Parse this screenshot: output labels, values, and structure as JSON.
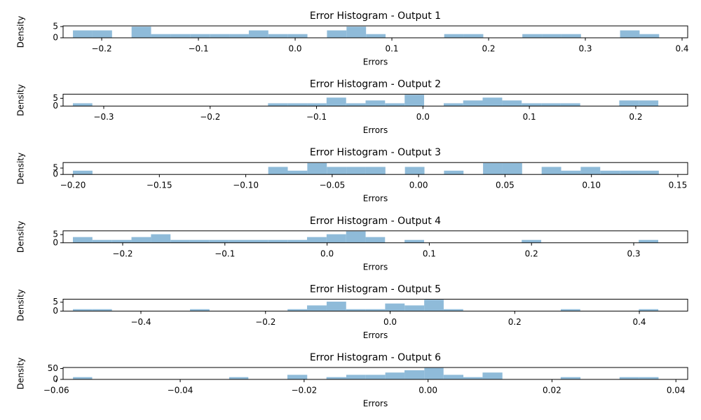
{
  "chart_data": [
    {
      "type": "histogram",
      "title": "Error Histogram - Output 1",
      "x_label": "Errors",
      "y_label": "Density",
      "color": "#8fbbd9",
      "bins": [
        -0.2297,
        -0.2095,
        -0.1893,
        -0.1691,
        -0.1489,
        -0.1287,
        -0.1085,
        -0.0883,
        -0.0681,
        -0.0479,
        -0.0277,
        -0.0075,
        0.0127,
        0.0329,
        0.0531,
        0.0733,
        0.0935,
        0.1137,
        0.1339,
        0.1541,
        0.1743,
        0.1945,
        0.2147,
        0.2349,
        0.2551,
        0.2753,
        0.2955,
        0.3157,
        0.3359,
        0.3561,
        0.3763
      ],
      "values": [
        3.3,
        3.3,
        0,
        4.95,
        1.65,
        1.65,
        1.65,
        1.65,
        1.65,
        3.3,
        1.65,
        1.65,
        0,
        3.3,
        4.95,
        1.65,
        0,
        0,
        0,
        1.65,
        1.65,
        0,
        0,
        1.65,
        1.65,
        1.65,
        0,
        0,
        3.3,
        1.65
      ],
      "xlim": [
        -0.2399,
        0.4058
      ],
      "xticks": [
        {
          "value": -0.2,
          "label": "−0.2"
        },
        {
          "value": -0.1,
          "label": "−0.1"
        },
        {
          "value": 0,
          "label": "0.0"
        },
        0.1,
        0.2,
        0.3,
        0.4
      ],
      "ylim": [
        0,
        5.3
      ],
      "yticks": [
        0,
        5
      ]
    },
    {
      "type": "histogram",
      "title": "Error Histogram - Output 2",
      "x_label": "Errors",
      "y_label": "Density",
      "color": "#8fbbd9",
      "bins": [
        -0.329,
        -0.3107,
        -0.2923,
        -0.274,
        -0.2556,
        -0.2373,
        -0.219,
        -0.2006,
        -0.1823,
        -0.1639,
        -0.1456,
        -0.1273,
        -0.1089,
        -0.0906,
        -0.0722,
        -0.0539,
        -0.0356,
        -0.0172,
        0.0011,
        0.0195,
        0.0378,
        0.0561,
        0.0745,
        0.0928,
        0.1112,
        0.1295,
        0.1478,
        0.1662,
        0.1845,
        0.2029,
        0.2212
      ],
      "values": [
        1.82,
        0,
        0,
        0,
        0,
        0,
        0,
        0,
        0,
        0,
        1.82,
        1.82,
        1.82,
        5.45,
        1.82,
        3.64,
        1.82,
        7.27,
        0,
        1.82,
        3.64,
        5.45,
        3.64,
        1.82,
        1.82,
        1.82,
        0,
        0,
        3.64,
        3.64
      ],
      "xlim": [
        -0.3382,
        0.2488
      ],
      "xticks": [
        {
          "value": -0.3,
          "label": "−0.3"
        },
        {
          "value": -0.2,
          "label": "−0.2"
        },
        {
          "value": -0.1,
          "label": "−0.1"
        },
        {
          "value": 0,
          "label": "0.0"
        },
        0.1,
        0.2
      ],
      "ylim": [
        0,
        7.6
      ],
      "yticks": [
        0,
        5
      ]
    },
    {
      "type": "histogram",
      "title": "Error Histogram - Output 3",
      "x_label": "Errors",
      "y_label": "Density",
      "color": "#8fbbd9",
      "bins": [
        -0.2,
        -0.1887,
        -0.1774,
        -0.1661,
        -0.1548,
        -0.1435,
        -0.1322,
        -0.1209,
        -0.1096,
        -0.0983,
        -0.087,
        -0.0757,
        -0.0644,
        -0.0531,
        -0.0418,
        -0.0305,
        -0.0192,
        -0.0079,
        0.0034,
        0.0147,
        0.026,
        0.0373,
        0.0486,
        0.0599,
        0.0712,
        0.0825,
        0.0938,
        0.1051,
        0.1164,
        0.1277,
        0.139
      ],
      "values": [
        2.95,
        0,
        0,
        0,
        0,
        0,
        0,
        0,
        0,
        0,
        5.9,
        2.95,
        8.85,
        5.9,
        5.9,
        5.9,
        0,
        5.9,
        0,
        2.95,
        0,
        8.85,
        8.85,
        0,
        5.9,
        2.95,
        5.9,
        2.95,
        2.95,
        2.95
      ],
      "xlim": [
        -0.2057,
        0.1557
      ],
      "xticks": [
        {
          "value": -0.2,
          "label": "−0.20"
        },
        {
          "value": -0.15,
          "label": "−0.15"
        },
        {
          "value": -0.1,
          "label": "−0.10"
        },
        {
          "value": -0.05,
          "label": "−0.05"
        },
        {
          "value": 0,
          "label": "0.00"
        },
        0.05,
        {
          "value": 0.1,
          "label": "0.10"
        },
        0.15
      ],
      "ylim": [
        0,
        9.3
      ],
      "yticks": [
        0,
        5
      ]
    },
    {
      "type": "histogram",
      "title": "Error Histogram - Output 4",
      "x_label": "Errors",
      "y_label": "Density",
      "color": "#8fbbd9",
      "bins": [
        -0.2487,
        -0.2296,
        -0.2105,
        -0.1914,
        -0.1723,
        -0.1532,
        -0.1342,
        -0.1151,
        -0.096,
        -0.0769,
        -0.0578,
        -0.0387,
        -0.0196,
        -0.0005,
        0.0186,
        0.0377,
        0.0567,
        0.0758,
        0.0949,
        0.114,
        0.1331,
        0.1522,
        0.1713,
        0.1904,
        0.2095,
        0.2286,
        0.2476,
        0.2667,
        0.2858,
        0.3049,
        0.324
      ],
      "values": [
        3.49,
        1.75,
        1.75,
        3.49,
        5.24,
        1.75,
        1.75,
        1.75,
        1.75,
        1.75,
        1.75,
        1.75,
        3.49,
        5.24,
        6.98,
        3.49,
        0,
        1.75,
        0,
        0,
        0,
        0,
        0,
        1.75,
        0,
        0,
        0,
        0,
        0,
        1.75
      ],
      "xlim": [
        -0.2583,
        0.3528
      ],
      "xticks": [
        {
          "value": -0.2,
          "label": "−0.2"
        },
        {
          "value": -0.1,
          "label": "−0.1"
        },
        {
          "value": 0,
          "label": "0.0"
        },
        0.1,
        0.2,
        0.3
      ],
      "ylim": [
        0,
        7.3
      ],
      "yticks": [
        0,
        5
      ]
    },
    {
      "type": "histogram",
      "title": "Error Histogram - Output 5",
      "x_label": "Errors",
      "y_label": "Density",
      "color": "#8fbbd9",
      "bins": [
        -0.5091,
        -0.4778,
        -0.4465,
        -0.4151,
        -0.3838,
        -0.3525,
        -0.3212,
        -0.2899,
        -0.2585,
        -0.2272,
        -0.1959,
        -0.1646,
        -0.1333,
        -0.1019,
        -0.0706,
        -0.0393,
        -0.008,
        0.0233,
        0.0547,
        0.086,
        0.1173,
        0.1486,
        0.1799,
        0.2113,
        0.2426,
        0.2739,
        0.3052,
        0.3365,
        0.3679,
        0.3992,
        0.4305
      ],
      "values": [
        1.06,
        1.06,
        0,
        0,
        0,
        0,
        1.06,
        0,
        0,
        0,
        0,
        1.06,
        3.19,
        5.32,
        1.06,
        1.06,
        4.26,
        3.19,
        6.39,
        1.06,
        0,
        0,
        0,
        0,
        0,
        1.06,
        0,
        0,
        0,
        1.06
      ],
      "xlim": [
        -0.5249,
        0.4776
      ],
      "xticks": [
        {
          "value": -0.4,
          "label": "−0.4"
        },
        {
          "value": -0.2,
          "label": "−0.2"
        },
        {
          "value": 0,
          "label": "0.0"
        },
        0.2,
        0.4
      ],
      "ylim": [
        0,
        6.7
      ],
      "yticks": [
        0,
        5
      ]
    },
    {
      "type": "histogram",
      "title": "Error Histogram - Output 6",
      "x_label": "Errors",
      "y_label": "Density",
      "color": "#8fbbd9",
      "bins": [
        -0.0573,
        -0.0542,
        -0.051,
        -0.0479,
        -0.0447,
        -0.0416,
        -0.0384,
        -0.0353,
        -0.0321,
        -0.029,
        -0.0258,
        -0.0227,
        -0.0195,
        -0.0164,
        -0.0132,
        -0.0101,
        -0.0069,
        -0.0038,
        -0.0006,
        0.0025,
        0.0057,
        0.0088,
        0.012,
        0.0151,
        0.0183,
        0.0214,
        0.0246,
        0.0277,
        0.0309,
        0.034,
        0.0372
      ],
      "values": [
        10.59,
        0,
        0,
        0,
        0,
        0,
        0,
        0,
        10.59,
        0,
        0,
        21.18,
        0,
        10.59,
        21.18,
        21.18,
        31.76,
        42.35,
        52.94,
        21.18,
        10.59,
        31.76,
        0,
        0,
        0,
        10.59,
        0,
        0,
        10.59,
        10.59
      ],
      "xlim": [
        -0.0589,
        0.0419
      ],
      "xticks": [
        {
          "value": -0.06,
          "label": "−0.06"
        },
        {
          "value": -0.04,
          "label": "−0.04"
        },
        {
          "value": -0.02,
          "label": "−0.02"
        },
        {
          "value": 0,
          "label": "0.00"
        },
        0.02,
        0.04
      ],
      "ylim": [
        0,
        55
      ],
      "yticks": [
        0,
        50
      ]
    }
  ]
}
